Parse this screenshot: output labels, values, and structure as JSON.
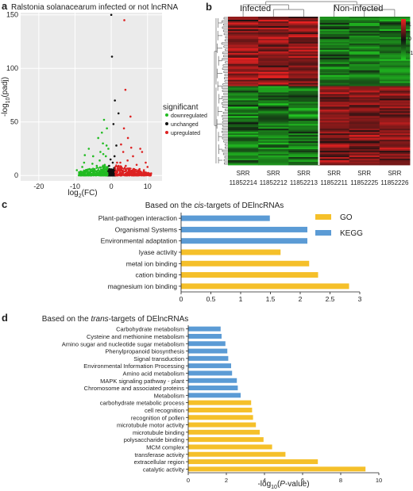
{
  "panel_labels": {
    "a": "a",
    "b": "b",
    "c": "c",
    "d": "d"
  },
  "colors": {
    "down": "#22bb22",
    "unchanged": "#111111",
    "up": "#dd2222",
    "go": "#f5c02a",
    "kegg": "#5b9bd5",
    "heat_high": "#ee2222",
    "heat_mid": "#111111",
    "heat_low": "#22cc22"
  },
  "chart_data": [
    {
      "id": "a",
      "type": "scatter",
      "title": "Ralstonia solanacearum infected or not lncRNA",
      "xlabel": "log2(FC)",
      "ylabel": "-log10(padj)",
      "xlim": [
        -25,
        14
      ],
      "ylim": [
        -5,
        152
      ],
      "xticks": [
        -20,
        -10,
        0,
        10
      ],
      "yticks": [
        0,
        50,
        100,
        150
      ],
      "legend_title": "significant",
      "legend_position": "right",
      "grid": true,
      "series": [
        {
          "name": "downregulated",
          "points": [
            [
              -9.5,
              5
            ],
            [
              -8,
              8
            ],
            [
              -7.5,
              12
            ],
            [
              -7,
              4
            ],
            [
              -6.2,
              25
            ],
            [
              -5.8,
              3
            ],
            [
              -5,
              18
            ],
            [
              -4.6,
              6
            ],
            [
              -4,
              9
            ],
            [
              -3.6,
              35
            ],
            [
              -3.2,
              14
            ],
            [
              -3,
              22
            ],
            [
              -2.6,
              4
            ],
            [
              -2.3,
              30
            ],
            [
              -2,
              52
            ],
            [
              -1.8,
              10
            ],
            [
              -1.5,
              18
            ],
            [
              -1.2,
              44
            ],
            [
              -1,
              8
            ],
            [
              -0.8,
              25
            ],
            [
              -6.5,
              2
            ],
            [
              -4.2,
              2
            ],
            [
              -3,
              3
            ],
            [
              -2.2,
              6
            ],
            [
              -1.5,
              3
            ],
            [
              -7.3,
              19
            ],
            [
              -5.2,
              11
            ],
            [
              -2.6,
              40
            ],
            [
              -2.2,
              20
            ],
            [
              -1.3,
              28
            ]
          ]
        },
        {
          "name": "unchanged",
          "points": [
            [
              -0.8,
              2
            ],
            [
              -0.5,
              6
            ],
            [
              -0.3,
              1
            ],
            [
              0,
              3
            ],
            [
              0.3,
              5
            ],
            [
              0.5,
              2
            ],
            [
              0.8,
              7
            ],
            [
              -1.2,
              1
            ],
            [
              1.2,
              3
            ],
            [
              0.2,
              111
            ],
            [
              1,
              70
            ],
            [
              0.6,
              48
            ],
            [
              2,
              58
            ],
            [
              1.4,
              28
            ],
            [
              0,
              150
            ],
            [
              -0.2,
              15
            ],
            [
              0.4,
              12
            ],
            [
              -0.6,
              9
            ],
            [
              0.9,
              18
            ],
            [
              1.6,
              1
            ],
            [
              -1.5,
              1
            ],
            [
              0.7,
              0.5
            ],
            [
              0.1,
              0.8
            ]
          ]
        },
        {
          "name": "upregulated",
          "points": [
            [
              2,
              6
            ],
            [
              2.5,
              12
            ],
            [
              3,
              4
            ],
            [
              3.3,
              22
            ],
            [
              3.6,
              145
            ],
            [
              3.9,
              80
            ],
            [
              4,
              9
            ],
            [
              4.5,
              14
            ],
            [
              5,
              3
            ],
            [
              5.3,
              55
            ],
            [
              5.5,
              26
            ],
            [
              6,
              18
            ],
            [
              6.3,
              6
            ],
            [
              7,
              10
            ],
            [
              7.5,
              3
            ],
            [
              8,
              25
            ],
            [
              8.5,
              22
            ],
            [
              9,
              5
            ],
            [
              10,
              8
            ],
            [
              11,
              2
            ],
            [
              3,
              2
            ],
            [
              2.3,
              1
            ],
            [
              5,
              1
            ],
            [
              4.2,
              2
            ],
            [
              6.8,
              1
            ],
            [
              8.2,
              1
            ],
            [
              2.7,
              29
            ],
            [
              4.6,
              35
            ],
            [
              3.5,
              44
            ],
            [
              9.5,
              12
            ],
            [
              1.6,
              12
            ],
            [
              7.8,
              6
            ]
          ]
        }
      ]
    },
    {
      "id": "b",
      "type": "heatmap",
      "groups": [
        "Infected",
        "Non-infected"
      ],
      "columns": [
        "SRR\n11852214",
        "SRR\n11852212",
        "SRR\n11852213",
        "SRR\n11852211",
        "SRR\n11852225",
        "SRR\n11852226"
      ],
      "scale_ticks": [
        "1",
        "0",
        "-1"
      ],
      "scale_range": [
        -1,
        1
      ]
    },
    {
      "id": "c",
      "type": "bar",
      "orientation": "horizontal",
      "title": "Based on the cis-targets of DElncRNAs",
      "xlim": [
        0,
        3
      ],
      "xticks": [
        0,
        0.5,
        1,
        1.5,
        2,
        2.5,
        3
      ],
      "legend": [
        "GO",
        "KEGG"
      ],
      "legend_position": "right",
      "categories": [
        "Plant-pathogen interaction",
        "Organismal Systems",
        "Environmental adaptation",
        "lyase activity",
        "metal ion binding",
        "cation binding",
        "magnesium ion binding"
      ],
      "values": [
        1.49,
        2.12,
        2.12,
        1.67,
        2.15,
        2.3,
        2.82
      ],
      "groups": [
        "KEGG",
        "KEGG",
        "KEGG",
        "GO",
        "GO",
        "GO",
        "GO"
      ]
    },
    {
      "id": "d",
      "type": "bar",
      "orientation": "horizontal",
      "title": "Based on the trans-targets of DElncRNAs",
      "xlabel": "-log10(P-value)",
      "xlim": [
        0,
        10
      ],
      "xticks": [
        0,
        2,
        4,
        6,
        8,
        10
      ],
      "categories": [
        "Carbohydrate metabolism",
        "Cysteine and methionine metabolism",
        "Amino sugar and nucleotide sugar metabolism",
        "Phenylpropanoid biosynthesis",
        "Signal transduction",
        "Environmental Information Processing",
        "Amino acid metabolism",
        "MAPK signaling pathway - plant",
        "Chromosome and associated proteins",
        "Metabolism",
        "carbohydrate metabolic process",
        "cell recognition",
        "recognition of pollen",
        "microtubule motor activity",
        "microtubule binding",
        "polysaccharide binding",
        "MCM complex",
        "transferase activity",
        "extracellular region",
        "catalytic activity"
      ],
      "values": [
        1.7,
        1.75,
        1.95,
        2.05,
        2.1,
        2.25,
        2.3,
        2.55,
        2.6,
        2.75,
        3.3,
        3.35,
        3.4,
        3.55,
        3.75,
        3.95,
        4.4,
        5.1,
        6.8,
        9.3
      ],
      "groups": [
        "KEGG",
        "KEGG",
        "KEGG",
        "KEGG",
        "KEGG",
        "KEGG",
        "KEGG",
        "KEGG",
        "KEGG",
        "KEGG",
        "GO",
        "GO",
        "GO",
        "GO",
        "GO",
        "GO",
        "GO",
        "GO",
        "GO",
        "GO"
      ]
    }
  ]
}
